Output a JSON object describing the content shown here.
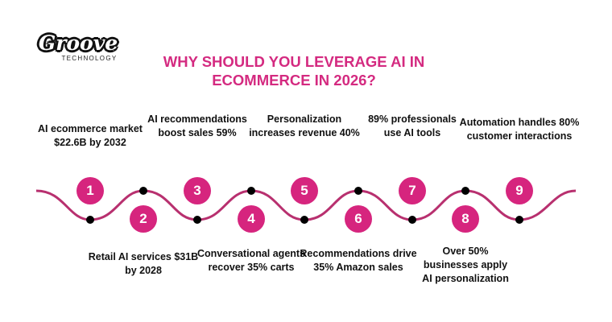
{
  "logo": {
    "brand": "Groove",
    "tagline": "TECHNOLOGY"
  },
  "title": "WHY SHOULD YOU LEVERAGE AI IN ECOMMERCE IN 2026?",
  "colors": {
    "accent": "#d6257e",
    "wave": "#b8306f",
    "dot": "#000000"
  },
  "steps": [
    {
      "number": "1",
      "text": "AI ecommerce market $22.6B by 2032"
    },
    {
      "number": "2",
      "text": "Retail AI services $31B by 2028"
    },
    {
      "number": "3",
      "text": "AI recommendations boost sales 59%"
    },
    {
      "number": "4",
      "text": "Conversational agents recover 35% carts"
    },
    {
      "number": "5",
      "text": "Personalization increases revenue 40%"
    },
    {
      "number": "6",
      "text": "Recommendations drive 35% Amazon sales"
    },
    {
      "number": "7",
      "text": "89% professionals use AI tools"
    },
    {
      "number": "8",
      "text": "Over 50% businesses apply AI personalization"
    },
    {
      "number": "9",
      "text": "Automation handles 80% customer interactions"
    }
  ]
}
